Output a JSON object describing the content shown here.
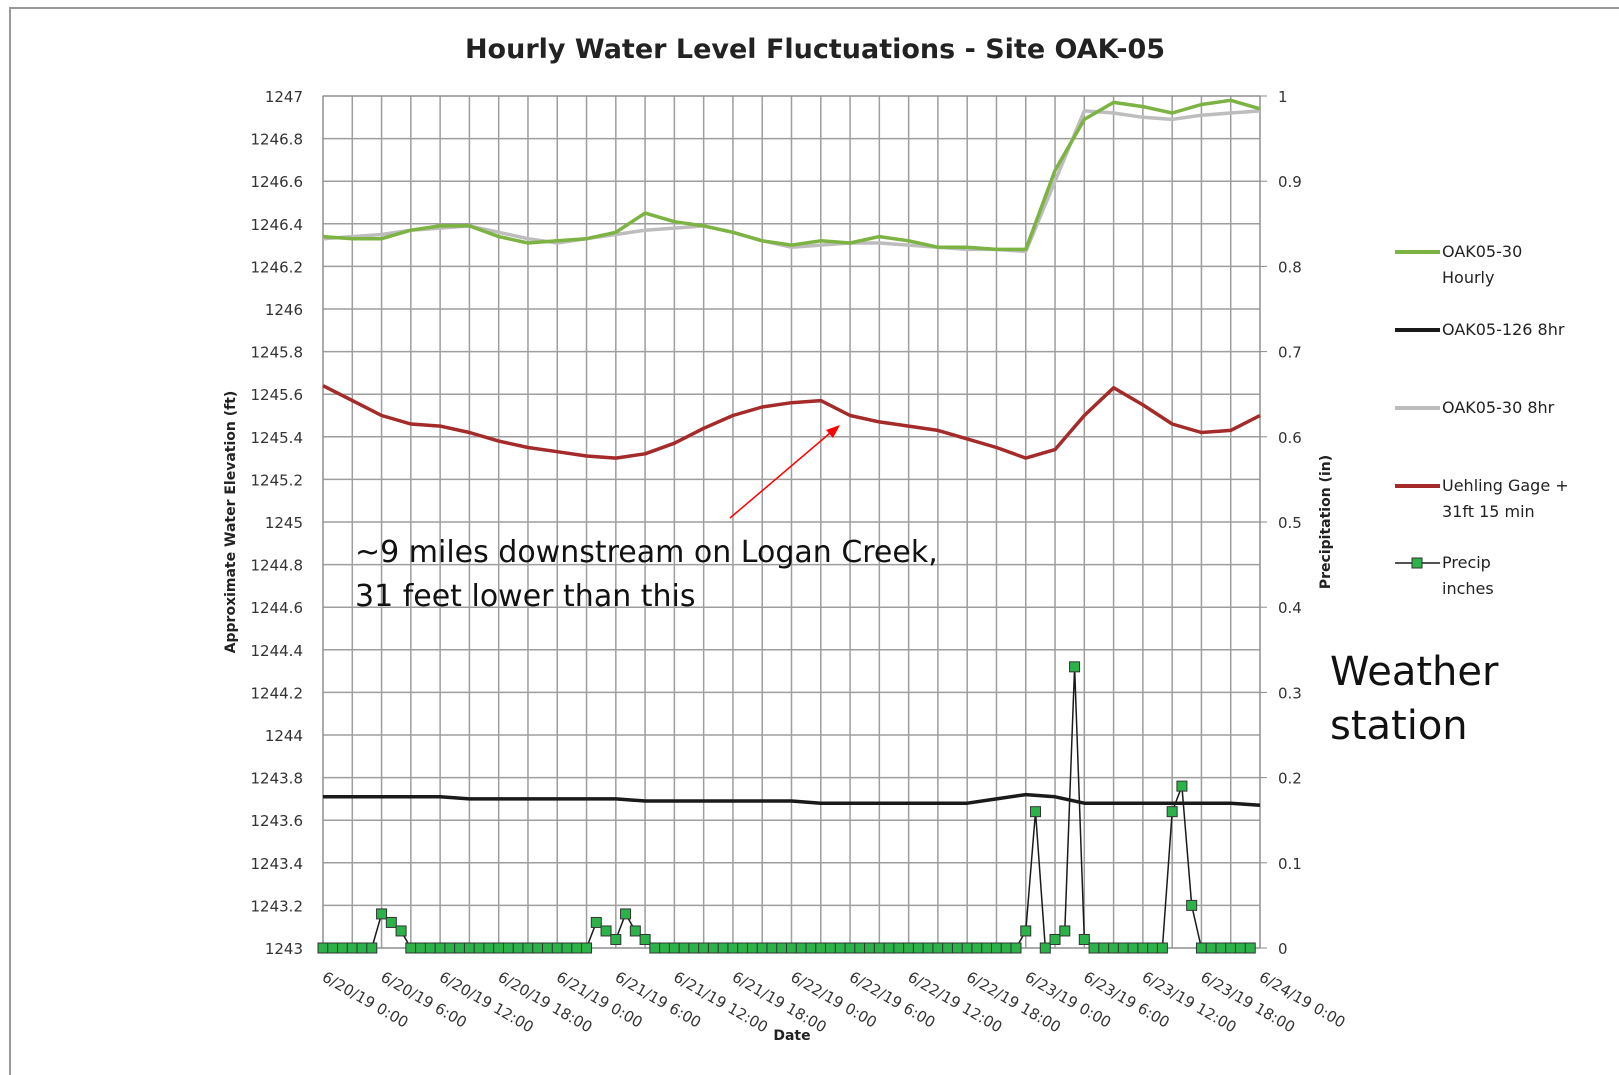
{
  "chart_data": {
    "type": "line",
    "title": "Hourly Water Level Fluctuations - Site OAK-05",
    "xlabel": "Date",
    "ylabel": "Approximate Water Elevation (ft)",
    "y2label": "Precipitation (in)",
    "xlim": [
      "6/20/19 0:00",
      "6/24/19 0:00"
    ],
    "xticks": [
      "6/20/19 0:00",
      "6/20/19 6:00",
      "6/20/19 12:00",
      "6/20/19 18:00",
      "6/21/19 0:00",
      "6/21/19 6:00",
      "6/21/19 12:00",
      "6/21/19 18:00",
      "6/22/19 0:00",
      "6/22/19 6:00",
      "6/22/19 12:00",
      "6/22/19 18:00",
      "6/23/19 0:00",
      "6/23/19 6:00",
      "6/23/19 12:00",
      "6/23/19 18:00",
      "6/24/19 0:00"
    ],
    "ylim": [
      1243,
      1247
    ],
    "yticks": [
      1243,
      1243.2,
      1243.4,
      1243.6,
      1243.8,
      1244,
      1244.2,
      1244.4,
      1244.6,
      1244.8,
      1245,
      1245.2,
      1245.4,
      1245.6,
      1245.8,
      1246,
      1246.2,
      1246.4,
      1246.6,
      1246.8,
      1247
    ],
    "y2lim": [
      0,
      1
    ],
    "y2ticks": [
      0,
      0.1,
      0.2,
      0.3,
      0.4,
      0.5,
      0.6,
      0.7,
      0.8,
      0.9,
      1
    ],
    "grid": true,
    "legend": "right",
    "x": [
      "6/20/19 0:00",
      "6/20/19 3:00",
      "6/20/19 6:00",
      "6/20/19 9:00",
      "6/20/19 12:00",
      "6/20/19 15:00",
      "6/20/19 18:00",
      "6/20/19 21:00",
      "6/21/19 0:00",
      "6/21/19 3:00",
      "6/21/19 6:00",
      "6/21/19 9:00",
      "6/21/19 12:00",
      "6/21/19 15:00",
      "6/21/19 18:00",
      "6/21/19 21:00",
      "6/22/19 0:00",
      "6/22/19 3:00",
      "6/22/19 6:00",
      "6/22/19 9:00",
      "6/22/19 12:00",
      "6/22/19 15:00",
      "6/22/19 18:00",
      "6/22/19 21:00",
      "6/23/19 0:00",
      "6/23/19 3:00",
      "6/23/19 6:00",
      "6/23/19 9:00",
      "6/23/19 12:00",
      "6/23/19 15:00",
      "6/23/19 18:00",
      "6/23/19 21:00",
      "6/24/19 0:00"
    ],
    "series": [
      {
        "name": "OAK05-30 Hourly",
        "color": "#7cb342",
        "values": [
          1246.34,
          1246.33,
          1246.33,
          1246.37,
          1246.39,
          1246.39,
          1246.34,
          1246.31,
          1246.32,
          1246.33,
          1246.36,
          1246.45,
          1246.41,
          1246.39,
          1246.36,
          1246.32,
          1246.3,
          1246.32,
          1246.31,
          1246.34,
          1246.32,
          1246.29,
          1246.29,
          1246.28,
          1246.28,
          1246.65,
          1246.89,
          1246.97,
          1246.95,
          1246.92,
          1246.96,
          1246.98,
          1246.94
        ]
      },
      {
        "name": "OAK05-126 8hr",
        "color": "#1a1a1a",
        "values": [
          1243.71,
          1243.71,
          1243.71,
          1243.71,
          1243.71,
          1243.7,
          1243.7,
          1243.7,
          1243.7,
          1243.7,
          1243.7,
          1243.69,
          1243.69,
          1243.69,
          1243.69,
          1243.69,
          1243.69,
          1243.68,
          1243.68,
          1243.68,
          1243.68,
          1243.68,
          1243.68,
          1243.7,
          1243.72,
          1243.71,
          1243.68,
          1243.68,
          1243.68,
          1243.68,
          1243.68,
          1243.68,
          1243.67
        ]
      },
      {
        "name": "OAK05-30 8hr",
        "color": "#bdbdbd",
        "values": [
          1246.33,
          1246.34,
          1246.35,
          1246.37,
          1246.38,
          1246.39,
          1246.36,
          1246.33,
          1246.31,
          1246.33,
          1246.35,
          1246.37,
          1246.38,
          1246.39,
          1246.36,
          1246.32,
          1246.29,
          1246.3,
          1246.31,
          1246.31,
          1246.3,
          1246.29,
          1246.28,
          1246.28,
          1246.27,
          1246.6,
          1246.93,
          1246.92,
          1246.9,
          1246.89,
          1246.91,
          1246.92,
          1246.93
        ]
      },
      {
        "name": "Uehling Gage + 31ft 15 min",
        "color": "#a52a2a",
        "values": [
          1245.64,
          1245.57,
          1245.5,
          1245.46,
          1245.45,
          1245.42,
          1245.38,
          1245.35,
          1245.33,
          1245.31,
          1245.3,
          1245.32,
          1245.37,
          1245.44,
          1245.5,
          1245.54,
          1245.56,
          1245.57,
          1245.5,
          1245.47,
          1245.45,
          1245.43,
          1245.39,
          1245.35,
          1245.3,
          1245.34,
          1245.5,
          1245.63,
          1245.55,
          1245.46,
          1245.42,
          1245.43,
          1245.5
        ]
      },
      {
        "name": "Precip inches",
        "color": "#1a1a1a",
        "marker_color": "#2bb34a",
        "axis": "y2",
        "x": [
          "6/20/19 0:00",
          "6/20/19 1:00",
          "6/20/19 2:00",
          "6/20/19 3:00",
          "6/20/19 4:00",
          "6/20/19 5:00",
          "6/20/19 6:00",
          "6/20/19 7:00",
          "6/20/19 8:00",
          "6/20/19 9:00",
          "6/20/19 10:00",
          "6/20/19 11:00",
          "6/20/19 12:00",
          "6/20/19 13:00",
          "6/20/19 14:00",
          "6/20/19 15:00",
          "6/20/19 16:00",
          "6/20/19 17:00",
          "6/20/19 18:00",
          "6/20/19 19:00",
          "6/20/19 20:00",
          "6/20/19 21:00",
          "6/20/19 22:00",
          "6/20/19 23:00",
          "6/21/19 0:00",
          "6/21/19 1:00",
          "6/21/19 2:00",
          "6/21/19 3:00",
          "6/21/19 4:00",
          "6/21/19 5:00",
          "6/21/19 6:00",
          "6/21/19 7:00",
          "6/21/19 8:00",
          "6/21/19 9:00",
          "6/21/19 10:00",
          "6/21/19 11:00",
          "6/21/19 12:00",
          "6/21/19 13:00",
          "6/21/19 14:00",
          "6/21/19 15:00",
          "6/21/19 16:00",
          "6/21/19 17:00",
          "6/21/19 18:00",
          "6/21/19 19:00",
          "6/21/19 20:00",
          "6/21/19 21:00",
          "6/21/19 22:00",
          "6/21/19 23:00",
          "6/22/19 0:00",
          "6/22/19 1:00",
          "6/22/19 2:00",
          "6/22/19 3:00",
          "6/22/19 4:00",
          "6/22/19 5:00",
          "6/22/19 6:00",
          "6/22/19 7:00",
          "6/22/19 8:00",
          "6/22/19 9:00",
          "6/22/19 10:00",
          "6/22/19 11:00",
          "6/22/19 12:00",
          "6/22/19 13:00",
          "6/22/19 14:00",
          "6/22/19 15:00",
          "6/22/19 16:00",
          "6/22/19 17:00",
          "6/22/19 18:00",
          "6/22/19 19:00",
          "6/22/19 20:00",
          "6/22/19 21:00",
          "6/22/19 22:00",
          "6/22/19 23:00",
          "6/23/19 0:00",
          "6/23/19 1:00",
          "6/23/19 2:00",
          "6/23/19 3:00",
          "6/23/19 4:00",
          "6/23/19 5:00",
          "6/23/19 6:00",
          "6/23/19 7:00",
          "6/23/19 8:00",
          "6/23/19 9:00",
          "6/23/19 10:00",
          "6/23/19 11:00",
          "6/23/19 12:00",
          "6/23/19 13:00",
          "6/23/19 14:00",
          "6/23/19 15:00",
          "6/23/19 16:00",
          "6/23/19 17:00",
          "6/23/19 18:00",
          "6/23/19 19:00",
          "6/23/19 20:00",
          "6/23/19 21:00",
          "6/23/19 22:00",
          "6/23/19 23:00"
        ],
        "values": [
          0,
          0,
          0,
          0,
          0,
          0,
          0.04,
          0.03,
          0.02,
          0,
          0,
          0,
          0,
          0,
          0,
          0,
          0,
          0,
          0,
          0,
          0,
          0,
          0,
          0,
          0,
          0,
          0,
          0,
          0.03,
          0.02,
          0.01,
          0.04,
          0.02,
          0.01,
          0,
          0,
          0,
          0,
          0,
          0,
          0,
          0,
          0,
          0,
          0,
          0,
          0,
          0,
          0,
          0,
          0,
          0,
          0,
          0,
          0,
          0,
          0,
          0,
          0,
          0,
          0,
          0,
          0,
          0,
          0,
          0,
          0,
          0,
          0,
          0,
          0,
          0,
          0.02,
          0.16,
          0,
          0.01,
          0.02,
          0.33,
          0.01,
          0,
          0,
          0,
          0,
          0,
          0,
          0,
          0,
          0.16,
          0.19,
          0.05,
          0,
          0,
          0,
          0,
          0,
          0
        ]
      }
    ],
    "annotations": [
      {
        "text": [
          "~9 miles downstream on Logan Creek,",
          "31 feet lower than this"
        ],
        "color": "#ff0000"
      },
      {
        "text": [
          "Weather",
          "station"
        ]
      }
    ]
  }
}
